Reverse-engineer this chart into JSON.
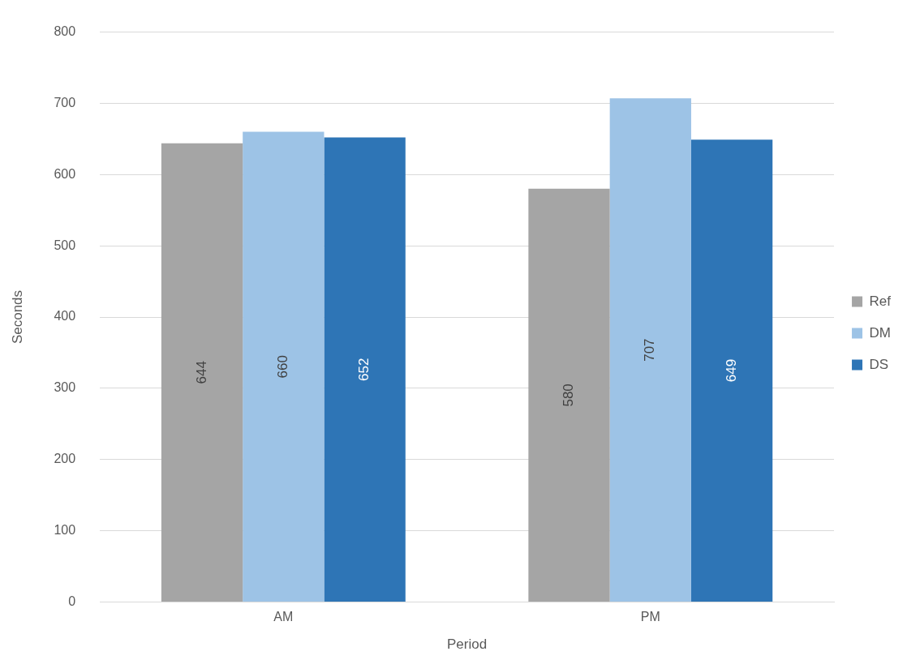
{
  "chart_data": {
    "type": "bar",
    "xlabel": "Period",
    "ylabel": "Seconds",
    "categories": [
      "AM",
      "PM"
    ],
    "series": [
      {
        "name": "Ref",
        "color": "#a5a5a5",
        "values": [
          644,
          580
        ]
      },
      {
        "name": "DM",
        "color": "#9dc3e6",
        "values": [
          660,
          707
        ]
      },
      {
        "name": "DS",
        "color": "#2e75b6",
        "values": [
          652,
          649
        ]
      }
    ],
    "ylim": [
      0,
      800
    ],
    "yticks": [
      0,
      100,
      200,
      300,
      400,
      500,
      600,
      700,
      800
    ],
    "grid": "y",
    "legend": "right",
    "data_labels": true
  }
}
